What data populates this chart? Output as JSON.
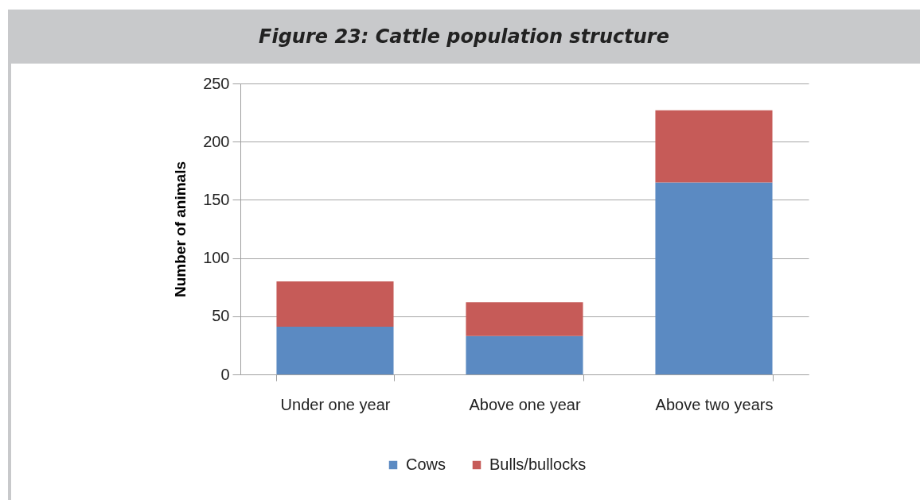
{
  "chart_data": {
    "type": "bar",
    "title": "Figure 23: Cattle population structure",
    "ylabel": "Number of animals",
    "categories": [
      "Under one year",
      "Above one year",
      "Above two years"
    ],
    "series": [
      {
        "name": "Cows",
        "color": "#5b8ac2",
        "values": [
          41,
          33,
          165
        ]
      },
      {
        "name": "Bulls/bullocks",
        "color": "#c65b58",
        "values": [
          39,
          29,
          62
        ]
      }
    ],
    "stacked": true,
    "ylim": [
      0,
      250
    ],
    "yticks": [
      0,
      50,
      100,
      150,
      200,
      250
    ],
    "grid": "y",
    "legend": "bottom"
  }
}
